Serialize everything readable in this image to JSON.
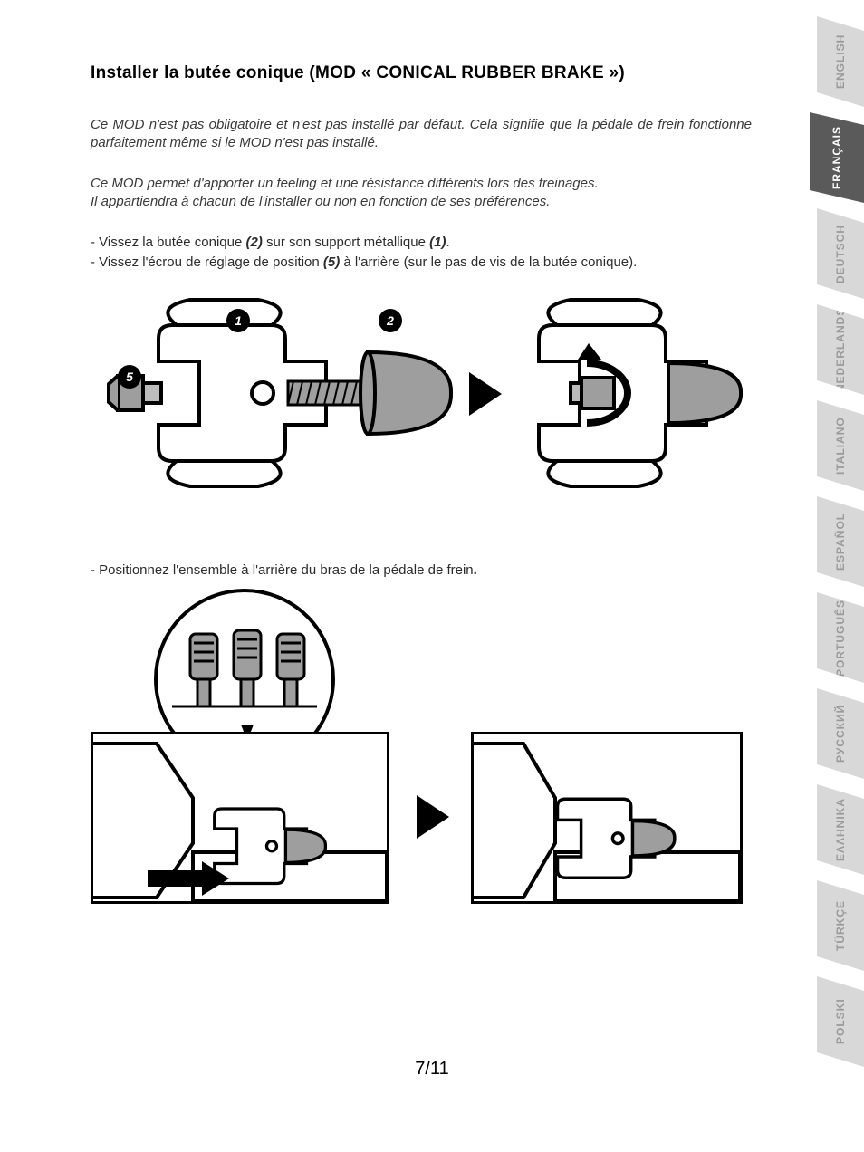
{
  "title": "Installer la butée conique (MOD « CONICAL RUBBER BRAKE »)",
  "para1": "Ce MOD n'est pas obligatoire et n'est pas installé par défaut. Cela signifie que la pédale de frein fonctionne parfaitement  même  si le MOD n'est pas installé.",
  "para2a": "Ce MOD permet d'apporter un feeling et une résistance différents lors des freinages.",
  "para2b": "Il appartiendra  à chacun de l'installer ou non en fonction de ses préférences.",
  "instr1_prefix": "- Vissez la butée conique ",
  "instr1_bold1": "(2)",
  "instr1_mid": " sur son support métallique ",
  "instr1_bold2": "(1)",
  "instr1_suffix": ".",
  "instr2_prefix": "- Vissez l'écrou de réglage de position ",
  "instr2_bold": "(5)",
  "instr2_suffix": " à l'arrière (sur le pas de vis de la butée conique).",
  "instr3": "- Positionnez l'ensemble à l'arrière du bras de la pédale de frein",
  "instr3_period": ".",
  "callouts": {
    "c1": "1",
    "c2": "2",
    "c5": "5"
  },
  "page_number": "7/11",
  "languages": [
    {
      "label": "ENGLISH",
      "active": false
    },
    {
      "label": "FRANÇAIS",
      "active": true
    },
    {
      "label": "DEUTSCH",
      "active": false
    },
    {
      "label": "NEDERLANDS",
      "active": false
    },
    {
      "label": "ITALIANO",
      "active": false
    },
    {
      "label": "ESPAÑOL",
      "active": false
    },
    {
      "label": "PORTUGUÊS",
      "active": false
    },
    {
      "label": "РУССКИЙ",
      "active": false
    },
    {
      "label": "ΕΛΛΗΝΙΚΑ",
      "active": false
    },
    {
      "label": "TÜRKÇE",
      "active": false
    },
    {
      "label": "POLSKI",
      "active": false
    }
  ],
  "styles": {
    "callout_bg": "#000000",
    "callout_fg": "#ffffff",
    "clip_fill": "#ffffff",
    "cone_fill": "#9e9e9e",
    "line": "#000000",
    "tab_inactive_bg": "#d8d8d8",
    "tab_inactive_fg": "#9a9a9a",
    "tab_active_bg": "#5a5a5a",
    "tab_active_fg": "#ffffff"
  }
}
